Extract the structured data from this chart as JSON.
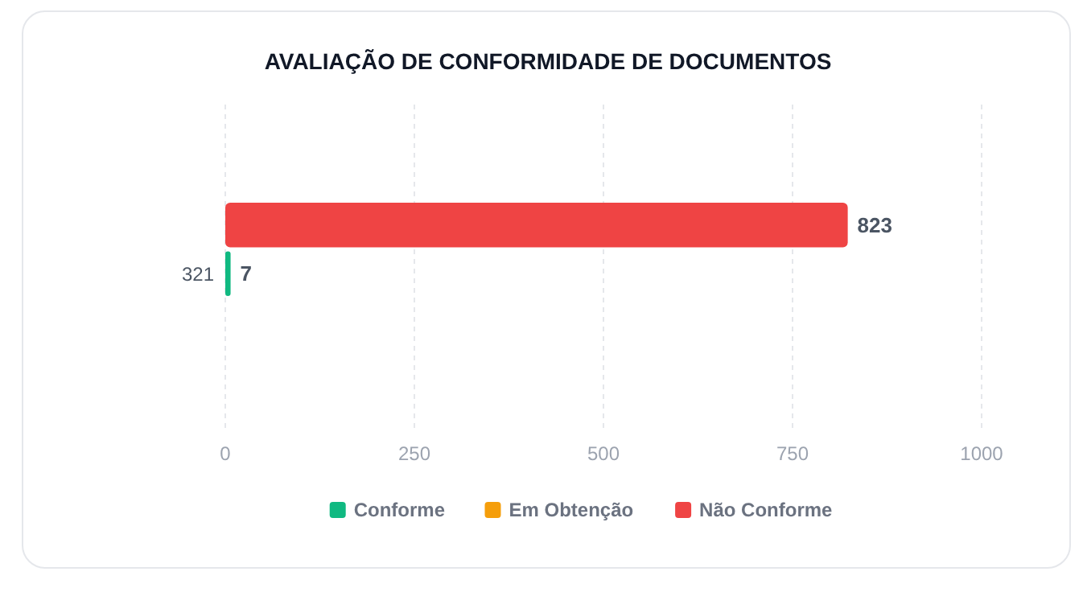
{
  "chart_data": {
    "type": "bar",
    "orientation": "horizontal",
    "title": "AVALIAÇÃO DE CONFORMIDADE DE DOCUMENTOS",
    "categories": [
      null,
      "321"
    ],
    "series": [
      {
        "name": "Conforme",
        "color": "#10b981",
        "values": [
          null,
          7
        ]
      },
      {
        "name": "Em Obtenção",
        "color": "#f59e0b",
        "values": [
          null,
          null
        ]
      },
      {
        "name": "Não Conforme",
        "color": "#ef4444",
        "values": [
          823,
          null
        ]
      }
    ],
    "xlim": [
      0,
      1000
    ],
    "xticks": [
      0,
      250,
      500,
      750,
      1000
    ],
    "grid": "x",
    "legend": "bottom",
    "data_labels": true
  }
}
